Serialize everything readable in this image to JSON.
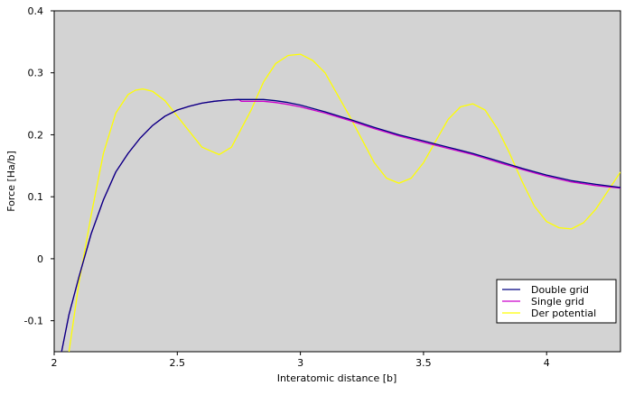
{
  "chart_data": {
    "type": "line",
    "xlabel": "Interatomic distance [b]",
    "ylabel": "Force [Ha/b]",
    "xlim": [
      2.0,
      4.3
    ],
    "ylim": [
      -0.15,
      0.4
    ],
    "x_ticks": [
      2,
      2.5,
      3,
      3.5,
      4
    ],
    "x_tick_labels": [
      "2",
      "2.5",
      "3",
      "3.5",
      "4"
    ],
    "y_ticks": [
      -0.1,
      0,
      0.1,
      0.2,
      0.3,
      0.4
    ],
    "y_tick_labels": [
      "-0.1",
      "0",
      "0.1",
      "0.2",
      "0.3",
      "0.4"
    ],
    "grid": false,
    "plot_background": "#d3d3d3",
    "legend_position": "bottom-right",
    "series": [
      {
        "name": "Double grid",
        "color": "#000080",
        "x": [
          2.03,
          2.06,
          2.1,
          2.15,
          2.2,
          2.25,
          2.3,
          2.35,
          2.4,
          2.45,
          2.5,
          2.55,
          2.6,
          2.65,
          2.7,
          2.75,
          2.8,
          2.85,
          2.9,
          2.95,
          3.0,
          3.1,
          3.2,
          3.3,
          3.4,
          3.5,
          3.6,
          3.7,
          3.8,
          3.9,
          4.0,
          4.1,
          4.2,
          4.3
        ],
        "y": [
          -0.15,
          -0.09,
          -0.03,
          0.04,
          0.095,
          0.14,
          0.17,
          0.195,
          0.215,
          0.23,
          0.24,
          0.246,
          0.251,
          0.254,
          0.256,
          0.257,
          0.257,
          0.257,
          0.255,
          0.252,
          0.248,
          0.237,
          0.225,
          0.212,
          0.2,
          0.19,
          0.18,
          0.17,
          0.158,
          0.146,
          0.135,
          0.126,
          0.12,
          0.115
        ]
      },
      {
        "name": "Single grid",
        "color": "#cc00cc",
        "x": [
          2.03,
          2.06,
          2.1,
          2.15,
          2.2,
          2.25,
          2.3,
          2.35,
          2.4,
          2.45,
          2.5,
          2.55,
          2.6,
          2.65,
          2.7,
          2.75,
          2.76,
          2.8,
          2.85,
          2.9,
          2.95,
          3.0,
          3.1,
          3.2,
          3.3,
          3.4,
          3.5,
          3.6,
          3.7,
          3.8,
          3.9,
          4.0,
          4.1,
          4.2,
          4.3
        ],
        "y": [
          -0.15,
          -0.09,
          -0.03,
          0.04,
          0.095,
          0.14,
          0.17,
          0.195,
          0.215,
          0.23,
          0.24,
          0.246,
          0.251,
          0.254,
          0.256,
          0.257,
          0.254,
          0.254,
          0.254,
          0.252,
          0.249,
          0.245,
          0.235,
          0.223,
          0.21,
          0.198,
          0.188,
          0.178,
          0.168,
          0.156,
          0.144,
          0.133,
          0.124,
          0.118,
          0.114
        ]
      },
      {
        "name": "Der potential",
        "color": "#ffff00",
        "x": [
          2.06,
          2.1,
          2.15,
          2.2,
          2.25,
          2.3,
          2.33,
          2.36,
          2.4,
          2.45,
          2.5,
          2.55,
          2.6,
          2.67,
          2.72,
          2.8,
          2.85,
          2.9,
          2.95,
          3.0,
          3.05,
          3.1,
          3.2,
          3.3,
          3.35,
          3.4,
          3.45,
          3.5,
          3.55,
          3.6,
          3.65,
          3.7,
          3.75,
          3.8,
          3.85,
          3.9,
          3.95,
          4.0,
          4.05,
          4.1,
          4.15,
          4.2,
          4.25,
          4.3
        ],
        "y": [
          -0.15,
          -0.04,
          0.07,
          0.17,
          0.235,
          0.265,
          0.272,
          0.274,
          0.27,
          0.255,
          0.23,
          0.205,
          0.18,
          0.168,
          0.18,
          0.24,
          0.285,
          0.315,
          0.328,
          0.33,
          0.32,
          0.3,
          0.23,
          0.155,
          0.13,
          0.122,
          0.13,
          0.155,
          0.19,
          0.225,
          0.245,
          0.25,
          0.24,
          0.21,
          0.17,
          0.125,
          0.085,
          0.06,
          0.05,
          0.048,
          0.058,
          0.08,
          0.11,
          0.14
        ]
      }
    ]
  }
}
